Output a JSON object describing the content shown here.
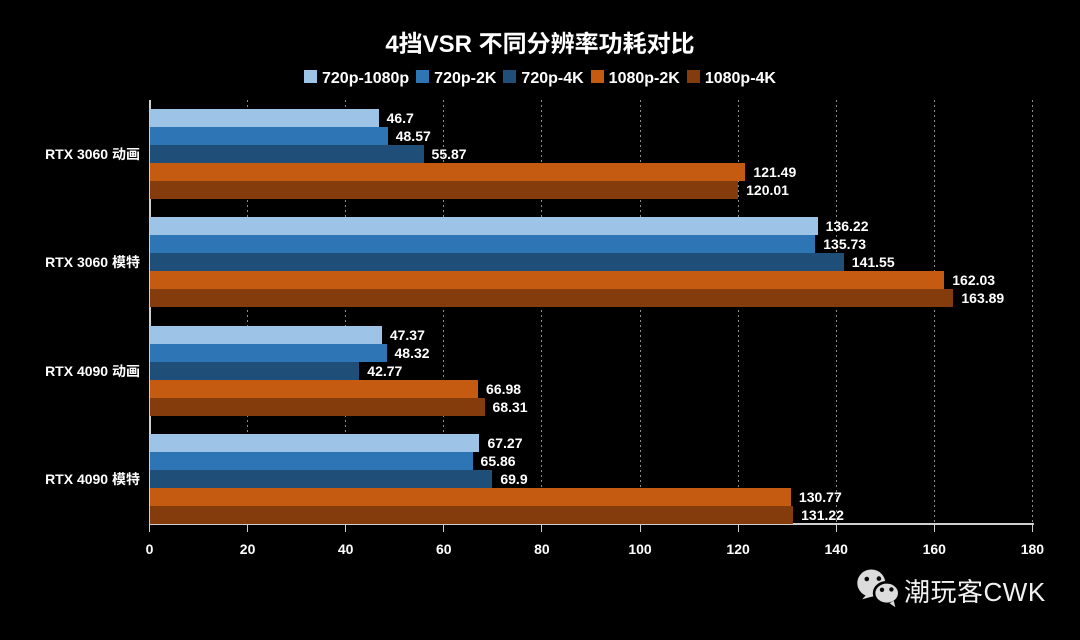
{
  "page": {
    "background": "#000000",
    "text_color": "#ffffff"
  },
  "chart_data": {
    "type": "bar",
    "orientation": "horizontal",
    "title": "4挡VSR 不同分辨率功耗对比",
    "categories": [
      "RTX 3060 动画",
      "RTX 3060 模特",
      "RTX 4090 动画",
      "RTX 4090 模特"
    ],
    "series": [
      {
        "name": "720p-1080p",
        "color": "#9dc3e6",
        "values": [
          46.7,
          136.22,
          47.37,
          67.27
        ]
      },
      {
        "name": "720p-2K",
        "color": "#2e75b6",
        "values": [
          48.57,
          135.73,
          48.32,
          65.86
        ]
      },
      {
        "name": "720p-4K",
        "color": "#1f4e79",
        "values": [
          55.87,
          141.55,
          42.77,
          69.9
        ]
      },
      {
        "name": "1080p-2K",
        "color": "#c55a11",
        "values": [
          121.49,
          162.03,
          66.98,
          130.77
        ]
      },
      {
        "name": "1080p-4K",
        "color": "#843c0c",
        "values": [
          120.01,
          163.89,
          68.31,
          131.22
        ]
      }
    ],
    "xlim": [
      0,
      180
    ],
    "x_ticks": [
      0,
      20,
      40,
      60,
      80,
      100,
      120,
      140,
      160,
      180
    ],
    "grid": "vertical-dashed",
    "grid_color": "#8d8d8d",
    "axis_color": "#cfcfcf",
    "legend_position": "top",
    "value_labels": true
  },
  "watermark": {
    "name": "潮玩客CWK",
    "logo": "wechat-icon",
    "logo_color": "#dcdcdc"
  }
}
